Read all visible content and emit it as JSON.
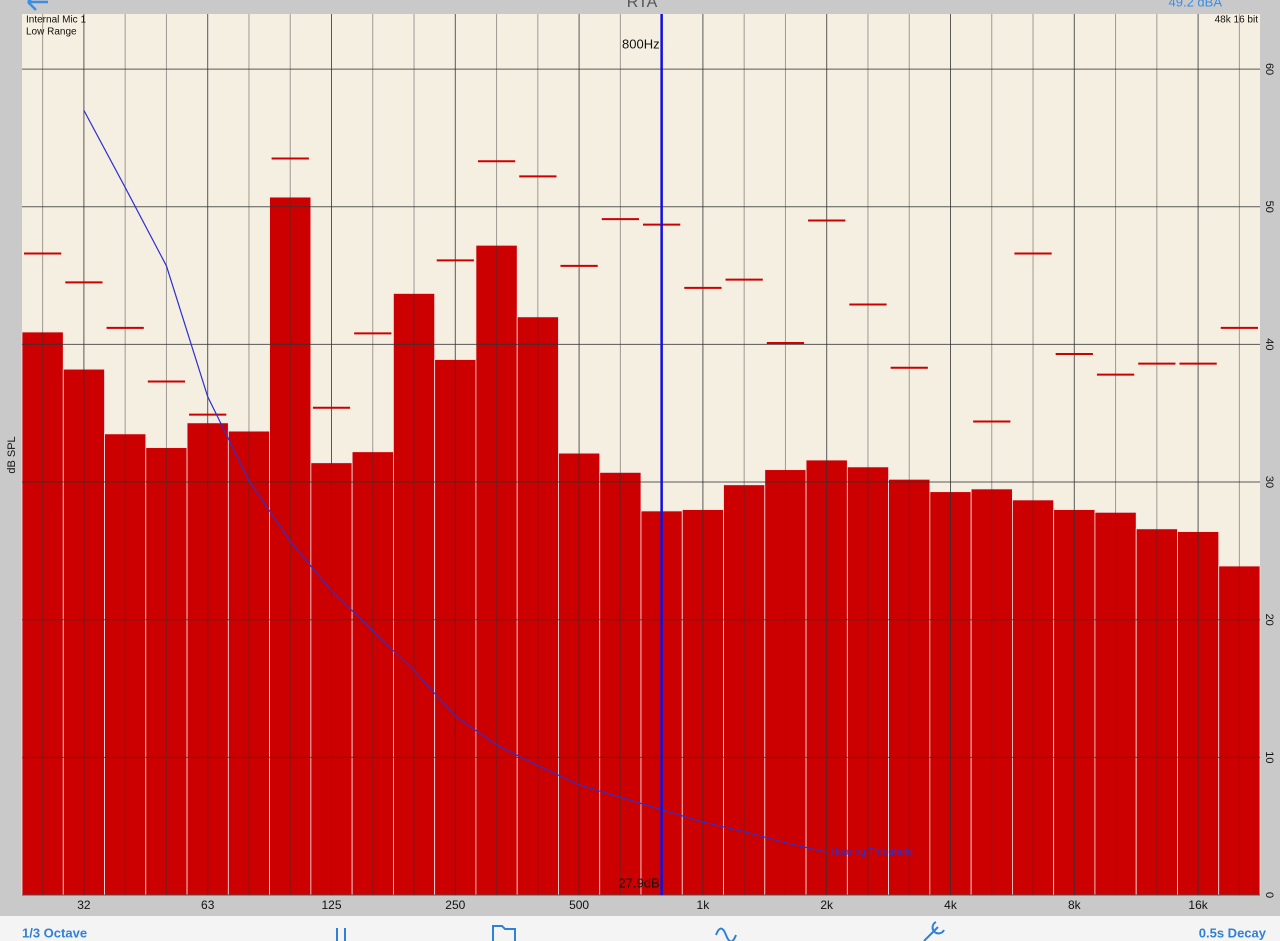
{
  "header": {
    "title": "RTA",
    "level": "49.2 dBA"
  },
  "input": {
    "device": "Internal Mic 1",
    "range": "Low Range",
    "format": "48k 16 bit"
  },
  "toolbar": {
    "resolution": "1/3 Octave",
    "decay": "0.5s Decay"
  },
  "chart_data": {
    "type": "bar",
    "ylabel": "dB SPL",
    "categories": [
      null,
      "32",
      null,
      null,
      "63",
      null,
      null,
      "125",
      null,
      null,
      "250",
      null,
      null,
      "500",
      null,
      null,
      "1k",
      null,
      null,
      "2k",
      null,
      null,
      "4k",
      null,
      null,
      "8k",
      null,
      null,
      "16k",
      null
    ],
    "values": [
      40.9,
      38.2,
      33.5,
      32.5,
      34.3,
      33.7,
      50.7,
      31.4,
      32.2,
      43.7,
      38.9,
      47.2,
      42.0,
      32.1,
      30.7,
      27.9,
      28.0,
      29.8,
      30.9,
      31.6,
      31.1,
      30.2,
      29.3,
      29.5,
      28.7,
      28.0,
      27.8,
      26.6,
      26.4,
      23.9
    ],
    "color": "#cc0000",
    "peak_values": [
      46.6,
      44.5,
      41.2,
      37.3,
      34.9,
      null,
      53.5,
      35.4,
      40.8,
      null,
      46.1,
      53.3,
      52.2,
      45.7,
      49.1,
      48.7,
      44.1,
      44.7,
      40.1,
      49.0,
      42.9,
      38.3,
      null,
      34.4,
      46.6,
      39.3,
      37.8,
      38.6,
      38.6,
      41.2
    ],
    "peak_color": "#cc0000",
    "threshold": {
      "label": "Hearing Threshold",
      "color": "#2f2fd0",
      "values": [
        null,
        57.0,
        51.4,
        45.7,
        36.2,
        30.1,
        25.7,
        22.1,
        19.2,
        16.3,
        13.0,
        10.9,
        9.4,
        8.0,
        7.1,
        6.2,
        5.3,
        4.6,
        3.8,
        3.1,
        null,
        null,
        null,
        null,
        null,
        null,
        null,
        null,
        null,
        null
      ]
    },
    "cursor": {
      "frequency": 800,
      "label": "800Hz",
      "level_label": "27.9dB",
      "color": "#1010e0"
    },
    "ylim": [
      0,
      64
    ],
    "yticks": [
      0,
      10,
      20,
      30,
      40,
      50,
      60
    ],
    "grid": true
  }
}
